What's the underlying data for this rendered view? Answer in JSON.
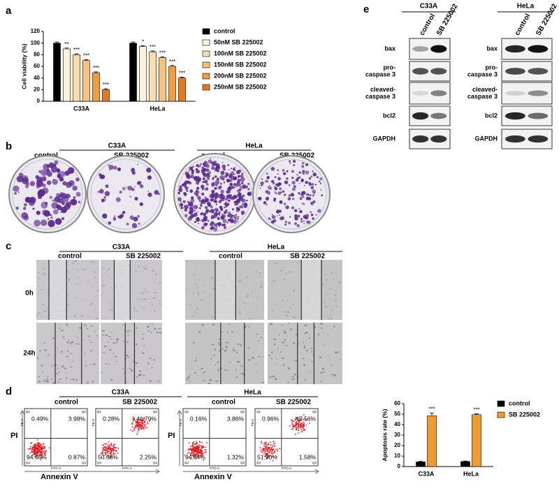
{
  "chart_data": [
    {
      "type": "bar",
      "ylabel": "Cell viability (%)",
      "categories": [
        "C33A",
        "HeLa"
      ],
      "ylim": [
        0,
        120
      ],
      "yticks": [
        0,
        20,
        40,
        60,
        80,
        100,
        120
      ],
      "legend": "right",
      "series": [
        {
          "name": "control",
          "color": "#000000",
          "values": [
            100,
            100
          ],
          "errors": [
            2,
            2
          ]
        },
        {
          "name": "50nM SB 225002",
          "color": "#fdf2d8",
          "values": [
            90,
            94
          ],
          "errors": [
            1.5,
            1.5
          ],
          "significance": [
            "**",
            "*"
          ]
        },
        {
          "name": "100nM SB 225002",
          "color": "#fbdcab",
          "values": [
            80,
            85
          ],
          "errors": [
            1.5,
            1.5
          ],
          "significance": [
            "***",
            "***"
          ]
        },
        {
          "name": "150nM SB 225002",
          "color": "#f7c27c",
          "values": [
            70,
            75
          ],
          "errors": [
            1.5,
            1.5
          ],
          "significance": [
            "***",
            "***"
          ]
        },
        {
          "name": "200nM SB 225002",
          "color": "#f29d3c",
          "values": [
            49,
            60
          ],
          "errors": [
            1.5,
            1.5
          ],
          "significance": [
            "***",
            "***"
          ]
        },
        {
          "name": "250nM SB 225002",
          "color": "#e8781c",
          "values": [
            20,
            40
          ],
          "errors": [
            1.5,
            1.5
          ],
          "significance": [
            "***",
            "***"
          ]
        }
      ]
    },
    {
      "type": "bar",
      "ylabel": "Apoptosis rate (%)",
      "categories": [
        "C33A",
        "HeLa"
      ],
      "ylim": [
        0,
        60
      ],
      "yticks": [
        0,
        10,
        20,
        30,
        40,
        50,
        60
      ],
      "legend": "right",
      "series": [
        {
          "name": "control",
          "color": "#000000",
          "values": [
            4.5,
            4.8
          ],
          "errors": [
            0.5,
            0.4
          ]
        },
        {
          "name": "SB 225002",
          "color": "#f39a2e",
          "values": [
            48.5,
            49.5
          ],
          "errors": [
            2.5,
            0.8
          ],
          "significance": [
            "***",
            "***"
          ]
        }
      ]
    }
  ],
  "panels": {
    "labels": [
      "a",
      "b",
      "c",
      "d",
      "e"
    ],
    "colony": [
      {
        "cell": "C33A",
        "conditions": [
          "control",
          "SB 225002"
        ]
      },
      {
        "cell": "HeLa",
        "conditions": [
          "control",
          "SB 225002"
        ]
      }
    ],
    "wound": {
      "groups": [
        {
          "cell": "C33A",
          "conditions": [
            "control",
            "SB 225002"
          ]
        },
        {
          "cell": "HeLa",
          "conditions": [
            "control",
            "SB 225002"
          ]
        }
      ],
      "timepoints": [
        "0h",
        "24h"
      ]
    },
    "flow": {
      "y_label": "PI",
      "x_label": "Annexin V",
      "instrument_x": "FITC-A",
      "instrument_y": "PE-A",
      "quadrant_names": [
        "Q1",
        "Q2",
        "Q3",
        "Q4"
      ],
      "groups": [
        {
          "cell": "C33A",
          "conditions": [
            "control",
            "SB 225002"
          ],
          "quadrants": [
            [
              "0.49%",
              "3.98%",
              "0.87%",
              "94.66%"
            ],
            [
              "0.28%",
              "46.79%",
              "2.25%",
              "50.68%"
            ]
          ]
        },
        {
          "cell": "HeLa",
          "conditions": [
            "control",
            "SB 225002"
          ],
          "quadrants": [
            [
              "0.16%",
              "3.86%",
              "1.32%",
              "94.84%"
            ],
            [
              "0.96%",
              "45.56%",
              "1.58%",
              "51.90%"
            ]
          ]
        }
      ]
    },
    "western": [
      {
        "cell": "C33A",
        "conditions": [
          "control",
          "SB 225002"
        ],
        "proteins": [
          [
            "bax"
          ],
          [
            "pro-",
            "caspase 3"
          ],
          [
            "cleaved-",
            "caspase 3"
          ],
          [
            "bcl2"
          ],
          [
            "GAPDH"
          ]
        ]
      },
      {
        "cell": "HeLa",
        "conditions": [
          "control",
          "SB 225002"
        ],
        "proteins": [
          [
            "bax"
          ],
          [
            "pro-",
            "caspase 3"
          ],
          [
            "cleaved-",
            "caspase 3"
          ],
          [
            "bcl2"
          ],
          [
            "GAPDH"
          ]
        ]
      }
    ]
  }
}
